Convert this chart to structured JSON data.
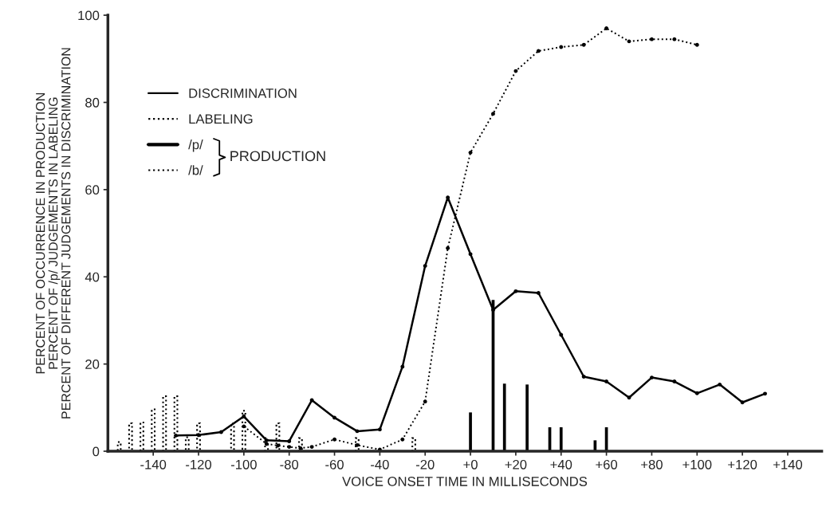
{
  "chart_data": {
    "type": "line",
    "xlabel": "VOICE ONSET TIME IN MILLISECONDS",
    "ylabel": "PERCENT OF OCCURRENCE IN PRODUCTION\nPERCENT OF /p/ JUDGEMENTS IN LABELING\nPERCENT OF DIFFERENT JUDGEMENTS IN DISCRIMINATION",
    "annotations": [
      "PRODUCTION"
    ],
    "xlim": [
      -160,
      155
    ],
    "ylim": [
      0,
      100
    ],
    "xticks": [
      -140,
      -120,
      -100,
      -80,
      -60,
      -40,
      -20,
      {
        "value": 0,
        "label": "+0"
      },
      {
        "value": 20,
        "label": "+20"
      },
      {
        "value": 40,
        "label": "+40"
      },
      {
        "value": 60,
        "label": "+60"
      },
      {
        "value": 80,
        "label": "+80"
      },
      {
        "value": 100,
        "label": "+100"
      },
      {
        "value": 120,
        "label": "+120"
      },
      {
        "value": 140,
        "label": "+140"
      }
    ],
    "yticks": [
      0,
      20,
      40,
      60,
      80,
      100
    ],
    "legend": "top left",
    "marker": "circle",
    "series": [
      {
        "name": "DISCRIMINATION",
        "color": "#000000",
        "line_style": "solid",
        "x": [
          -130,
          -120,
          -110,
          -100,
          -90,
          -80,
          -70,
          -60,
          -50,
          -40,
          -30,
          -20,
          -10,
          0,
          10,
          20,
          30,
          40,
          50,
          60,
          70,
          80,
          90,
          100,
          110,
          120,
          130
        ],
        "values": [
          3.6,
          3.7,
          4.4,
          8.0,
          2.5,
          2.3,
          11.7,
          7.7,
          4.6,
          5.0,
          19.4,
          42.5,
          58.2,
          45.2,
          32.4,
          36.7,
          36.3,
          26.7,
          17.1,
          16.0,
          12.3,
          16.9,
          16.0,
          13.3,
          15.3,
          11.2,
          13.2
        ]
      },
      {
        "name": "LABELING",
        "color": "#000000",
        "line_style": "dotted",
        "x": [
          -100,
          -90,
          -85,
          -80,
          -75,
          -70,
          -60,
          -50,
          -40,
          -30,
          -20,
          -10,
          0,
          10,
          20,
          30,
          40,
          50,
          60,
          70,
          80,
          90,
          100
        ],
        "values": [
          5.7,
          1.7,
          1.3,
          1.0,
          0.7,
          1.0,
          2.7,
          1.4,
          0.4,
          2.7,
          11.4,
          46.6,
          68.5,
          77.4,
          87.2,
          91.8,
          92.7,
          93.2,
          97.0,
          94.0,
          94.5,
          94.5,
          93.2
        ]
      },
      {
        "name": "/p/",
        "type": "bar",
        "color": "#000000",
        "line_style": "solid",
        "x": [
          0,
          10,
          15,
          25,
          35,
          40,
          55,
          60
        ],
        "values": [
          8.9,
          34.7,
          15.5,
          15.3,
          5.5,
          5.5,
          2.5,
          5.5
        ]
      },
      {
        "name": "/b/",
        "type": "bar",
        "color": "#000000",
        "line_style": "dotted",
        "x": [
          -155,
          -150,
          -145,
          -140,
          -135,
          -130,
          -125,
          -120,
          -105,
          -100,
          -90,
          -85,
          -75,
          -50,
          -25
        ],
        "values": [
          2.1,
          6.4,
          6.6,
          9.6,
          12.6,
          12.6,
          3.2,
          6.4,
          6.4,
          9.3,
          3.0,
          6.4,
          3.0,
          3.0,
          3.0
        ]
      }
    ]
  }
}
